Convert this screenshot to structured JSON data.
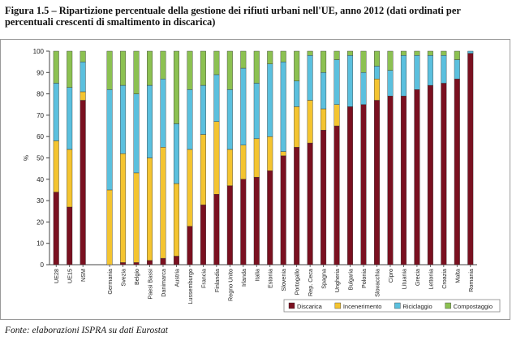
{
  "caption": {
    "title": "Figura 1.5 – Ripartizione percentuale della gestione dei rifiuti urbani nell'UE, anno 2012 (dati ordinati per percentuali crescenti di smaltimento in discarica)"
  },
  "source": {
    "text": "Fonte: elaborazioni ISPRA su dati Eurostat"
  },
  "chart_data": {
    "type": "bar",
    "stacked": true,
    "title": "",
    "xlabel": "",
    "ylabel": "%",
    "ylim": [
      0,
      100
    ],
    "yticks": [
      0,
      10,
      20,
      30,
      40,
      50,
      60,
      70,
      80,
      90,
      100
    ],
    "grid": false,
    "legend_position": "bottom-right",
    "categories": [
      "UE28",
      "UE15",
      "NSM",
      "",
      "Germania",
      "Svezia",
      "Belgio",
      "Paesi Bassi",
      "Danimarca",
      "Austria",
      "Lussemburgo",
      "Francia",
      "Finlandia",
      "Regno Unito",
      "Irlanda",
      "Italia",
      "Estonia",
      "Slovenia",
      "Portogallo",
      "Rep. Ceca",
      "Spagna",
      "Ungheria",
      "Bulgaria",
      "Polonia",
      "Slovacchia",
      "Cipro",
      "Lituania",
      "Grecia",
      "Lettonia",
      "Croazia",
      "Malta",
      "Romania"
    ],
    "series": [
      {
        "name": "Discarica",
        "color": "#7a1020",
        "values": [
          34,
          27,
          77,
          null,
          0,
          1,
          1,
          2,
          3,
          4,
          18,
          28,
          33,
          37,
          40,
          41,
          44,
          51,
          55,
          57,
          63,
          65,
          74,
          75,
          77,
          79,
          79,
          82,
          84,
          85,
          87,
          99
        ]
      },
      {
        "name": "Incenerimento",
        "color": "#f4c430",
        "values": [
          24,
          27,
          4,
          null,
          35,
          51,
          42,
          48,
          52,
          34,
          36,
          33,
          34,
          17,
          16,
          18,
          16,
          2,
          19,
          20,
          10,
          10,
          0,
          0,
          10,
          0,
          0,
          0,
          0,
          0,
          0,
          0
        ]
      },
      {
        "name": "Riciclaggio",
        "color": "#5bc0de",
        "values": [
          27,
          29,
          14,
          null,
          47,
          32,
          37,
          34,
          32,
          28,
          28,
          23,
          22,
          28,
          36,
          26,
          34,
          42,
          12,
          21,
          17,
          21,
          24,
          15,
          6,
          12,
          19,
          16,
          14,
          13,
          9,
          1
        ]
      },
      {
        "name": "Compostaggio",
        "color": "#8cc152",
        "values": [
          15,
          17,
          5,
          null,
          18,
          16,
          20,
          16,
          13,
          34,
          18,
          16,
          11,
          18,
          8,
          15,
          6,
          5,
          14,
          2,
          10,
          4,
          2,
          10,
          7,
          9,
          2,
          2,
          2,
          2,
          4,
          0
        ]
      }
    ]
  }
}
